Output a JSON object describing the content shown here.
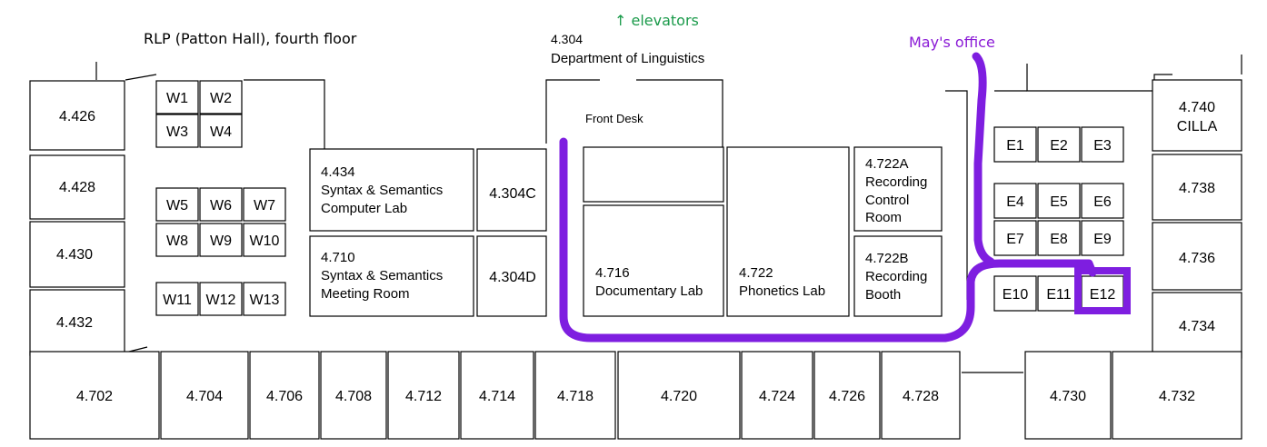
{
  "title": "RLP (Patton Hall), fourth floor",
  "elevators": "↑ elevators",
  "route_label": "May's office",
  "accent_route_color": "#7e1ee0",
  "dept": {
    "number": "4.304",
    "name": "Department of Linguistics",
    "front_desk": "Front Desk"
  },
  "rooms": {
    "r4426": "4.426",
    "r4428": "4.428",
    "r4430": "4.430",
    "r4432": "4.432",
    "r4434": [
      "4.434",
      "Syntax & Semantics",
      "Computer Lab"
    ],
    "r4710": [
      "4.710",
      "Syntax & Semantics",
      "Meeting Room"
    ],
    "r4304c": "4.304C",
    "r4304d": "4.304D",
    "r4716": [
      "4.716",
      "Documentary Lab"
    ],
    "r4722": [
      "4.722",
      "Phonetics Lab"
    ],
    "r4722a": [
      "4.722A",
      "Recording",
      "Control",
      "Room"
    ],
    "r4722b": [
      "4.722B",
      "Recording",
      "Booth"
    ],
    "r4740": [
      "4.740",
      "CILLA"
    ],
    "r4738": "4.738",
    "r4736": "4.736",
    "r4734": "4.734",
    "bottom": [
      "4.702",
      "4.704",
      "4.706",
      "4.708",
      "4.712",
      "4.714",
      "4.718",
      "4.720",
      "4.724",
      "4.726",
      "4.728",
      "4.730",
      "4.732"
    ]
  },
  "west_cubicles": [
    "W1",
    "W2",
    "W3",
    "W4",
    "W5",
    "W6",
    "W7",
    "W8",
    "W9",
    "W10",
    "W11",
    "W12",
    "W13"
  ],
  "east_cubicles": [
    "E1",
    "E2",
    "E3",
    "E4",
    "E5",
    "E6",
    "E7",
    "E8",
    "E9",
    "E10",
    "E11",
    "E12"
  ]
}
